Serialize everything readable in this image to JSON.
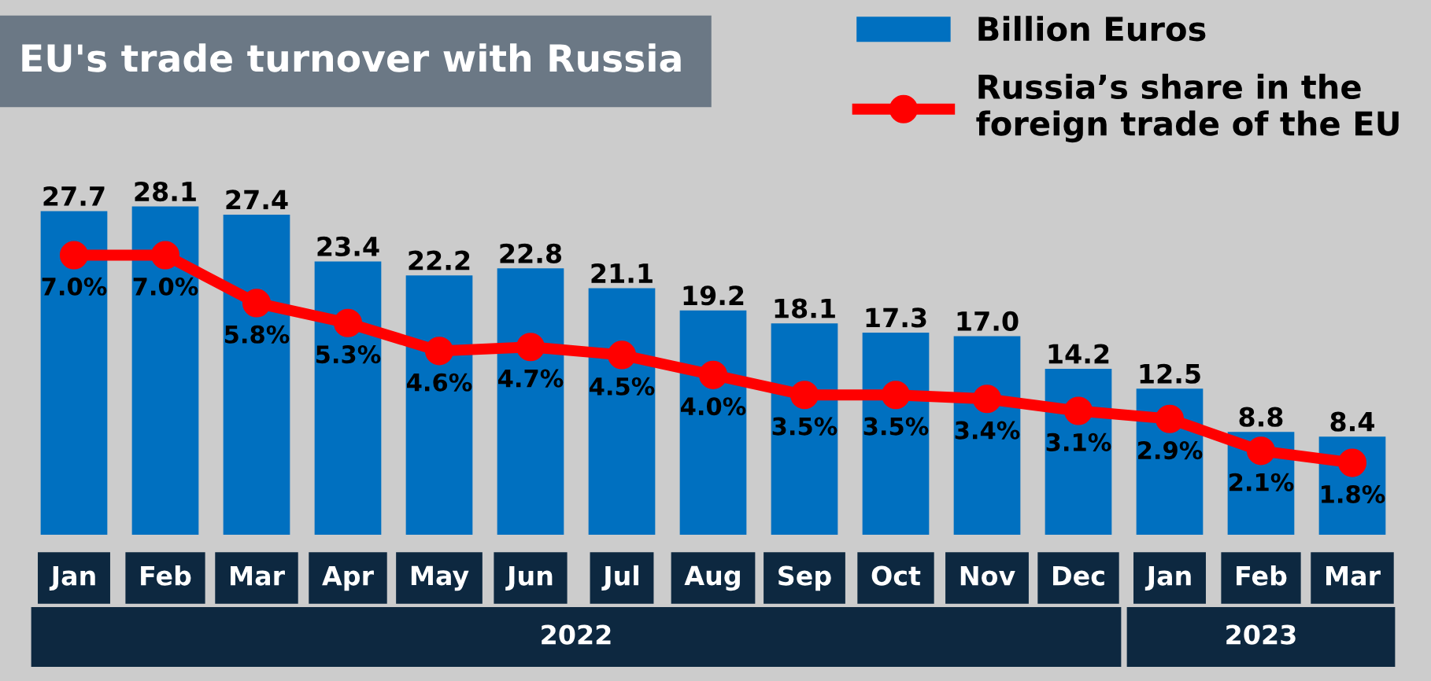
{
  "chart_data": {
    "type": "bar",
    "title": "EU's trade turnover with Russia",
    "categories": [
      "Jan",
      "Feb",
      "Mar",
      "Apr",
      "May",
      "Jun",
      "Jul",
      "Aug",
      "Sep",
      "Oct",
      "Nov",
      "Dec",
      "Jan",
      "Feb",
      "Mar"
    ],
    "series": [
      {
        "name": "Billion Euros",
        "color": "#0070c0",
        "values": [
          27.7,
          28.1,
          27.4,
          23.4,
          22.2,
          22.8,
          21.1,
          19.2,
          18.1,
          17.3,
          17.0,
          14.2,
          12.5,
          8.8,
          8.4
        ],
        "value_labels": [
          "27.7",
          "28.1",
          "27.4",
          "23.4",
          "22.2",
          "22.8",
          "21.1",
          "19.2",
          "18.1",
          "17.3",
          "17.0",
          "14.2",
          "12.5",
          "8.8",
          "8.4"
        ]
      },
      {
        "name": "Russia’s share in the\nforeign trade of the EU",
        "type": "line",
        "axis": "y2",
        "color": "#ff0000",
        "marker": "circle",
        "values": [
          7.0,
          7.0,
          5.8,
          5.3,
          4.6,
          4.7,
          4.5,
          4.0,
          3.5,
          3.5,
          3.4,
          3.1,
          2.9,
          2.1,
          1.8
        ],
        "value_labels": [
          "7.0%",
          "7.0%",
          "5.8%",
          "5.3%",
          "4.6%",
          "4.7%",
          "4.5%",
          "4.0%",
          "3.5%",
          "3.5%",
          "3.4%",
          "3.1%",
          "2.9%",
          "2.1%",
          "1.8%"
        ]
      }
    ],
    "annotations": [
      "2022",
      "2023"
    ],
    "legend": "top right",
    "grid": false
  }
}
